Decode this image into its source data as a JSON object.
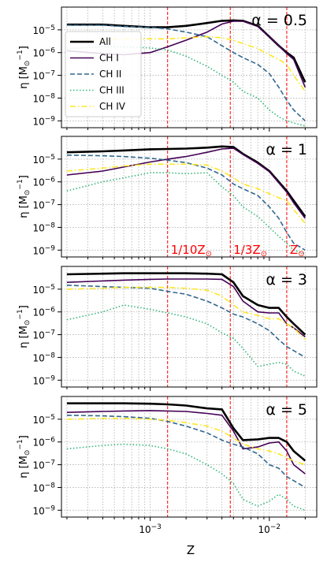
{
  "figure": {
    "xlabel": "Z",
    "ylabel": "η [M",
    "ylabel_sub": "⊙",
    "ylabel_sup": "−1",
    "ylabel_end": "]"
  },
  "chart_data": {
    "type": "line",
    "x_scale": "log",
    "y_scale": "log",
    "xlim": [
      0.00018,
      0.025
    ],
    "ylim": [
      5e-10,
      0.0001
    ],
    "grid": true,
    "legend": {
      "placement": "upper-left of top panel",
      "entries": [
        {
          "label": "All",
          "color": "#000000",
          "style": "solid"
        },
        {
          "label": "CH I",
          "color": "#440154",
          "style": "solid"
        },
        {
          "label": "CH II",
          "color": "#31688e",
          "style": "dashed"
        },
        {
          "label": "CH III",
          "color": "#35b779",
          "style": "dotted"
        },
        {
          "label": "CH IV",
          "color": "#fde725",
          "style": "dashdot"
        }
      ]
    },
    "x_ticks": [
      {
        "value": 0.001,
        "base": "10",
        "exp": "−3"
      },
      {
        "value": 0.01,
        "base": "10",
        "exp": "−2"
      }
    ],
    "y_ticks": [
      {
        "value": 1e-05,
        "base": "10",
        "exp": "−5"
      },
      {
        "value": 1e-06,
        "base": "10",
        "exp": "−6"
      },
      {
        "value": 1e-07,
        "base": "10",
        "exp": "−7"
      },
      {
        "value": 1e-08,
        "base": "10",
        "exp": "−8"
      },
      {
        "value": 1e-09,
        "base": "10",
        "exp": "−9"
      }
    ],
    "vlines": [
      {
        "x": 0.0014,
        "label_main": "1/10Z",
        "label_sub": "⊙"
      },
      {
        "x": 0.0047,
        "label_main": "1/3Z",
        "label_sub": "⊙"
      },
      {
        "x": 0.014,
        "label_main": "Z",
        "label_sub": "⊙"
      }
    ],
    "vline_labels_panel": 1,
    "x": [
      0.0002,
      0.0004,
      0.0006,
      0.001,
      0.0014,
      0.002,
      0.003,
      0.004,
      0.005,
      0.006,
      0.008,
      0.01,
      0.012,
      0.014,
      0.016,
      0.02
    ],
    "panels": [
      {
        "title": "α = 0.5",
        "series": [
          {
            "name": "All",
            "values": [
              1.7e-05,
              1.7e-05,
              1.5e-05,
              1.3e-05,
              1.3e-05,
              1.5e-05,
              2e-05,
              2.5e-05,
              2.6e-05,
              2.5e-05,
              1.5e-05,
              5e-06,
              2e-06,
              1e-06,
              6e-07,
              5e-08
            ]
          },
          {
            "name": "CH I",
            "values": [
              1.2e-06,
              9e-07,
              8e-07,
              1e-06,
              1.8e-06,
              3.5e-06,
              8e-06,
              1.8e-05,
              2.4e-05,
              2.4e-05,
              1.4e-05,
              5e-06,
              2e-06,
              9e-07,
              5e-07,
              3e-08
            ]
          },
          {
            "name": "CH II",
            "values": [
              1.6e-05,
              1.6e-05,
              1.4e-05,
              1.3e-05,
              1.1e-05,
              8e-06,
              5e-06,
              2e-06,
              1e-06,
              6e-07,
              3e-07,
              1.2e-07,
              3e-08,
              8e-09,
              3e-09,
              1e-09
            ]
          },
          {
            "name": "CH III",
            "values": [
              1.5e-06,
              1.8e-06,
              1.8e-06,
              1.6e-06,
              1.3e-06,
              7e-07,
              2.5e-07,
              1e-07,
              5e-08,
              2e-08,
              1e-08,
              3e-09,
              1.5e-09,
              1e-09,
              8e-10,
              6e-10
            ]
          },
          {
            "name": "CH IV",
            "values": [
              3e-06,
              3.5e-06,
              4e-06,
              4e-06,
              4e-06,
              4.5e-06,
              5e-06,
              4.5e-06,
              3.5e-06,
              2.5e-06,
              1.5e-06,
              8e-07,
              5e-07,
              3e-07,
              1e-07,
              2e-08
            ]
          }
        ]
      },
      {
        "title": "α = 1",
        "series": [
          {
            "name": "All",
            "values": [
              2e-05,
              2.2e-05,
              2.4e-05,
              2.7e-05,
              2.8e-05,
              2.9e-05,
              3.2e-05,
              3.6e-05,
              3.4e-05,
              1.7e-05,
              7e-06,
              3e-06,
              1e-06,
              4e-07,
              1.5e-07,
              3e-08
            ]
          },
          {
            "name": "CH I",
            "values": [
              2e-06,
              3e-06,
              4.5e-06,
              7.5e-06,
              1e-05,
              1.3e-05,
              2e-05,
              2.8e-05,
              3e-05,
              1.6e-05,
              6.5e-06,
              2.8e-06,
              9e-07,
              3.5e-07,
              1.2e-07,
              2.5e-08
            ]
          },
          {
            "name": "CH II",
            "values": [
              1.5e-05,
              1.4e-05,
              1.3e-05,
              1.1e-05,
              9e-06,
              7e-06,
              4e-06,
              2e-06,
              8e-07,
              5e-07,
              2.5e-07,
              8e-08,
              2.5e-08,
              6e-09,
              2e-09,
              1e-09
            ]
          },
          {
            "name": "CH III",
            "values": [
              4e-07,
              1e-06,
              1.5e-06,
              2.5e-06,
              2.5e-06,
              2.3e-06,
              2.5e-06,
              6e-07,
              2.5e-07,
              8e-08,
              3e-08,
              1e-08,
              4e-09,
              2e-09,
              1e-09,
              7e-10
            ]
          },
          {
            "name": "CH IV",
            "values": [
              3e-06,
              4e-06,
              5e-06,
              6e-06,
              6e-06,
              6e-06,
              5.5e-06,
              3e-06,
              1.5e-06,
              8e-07,
              5e-07,
              3e-07,
              2e-07,
              1.5e-07,
              6e-08,
              1.5e-08
            ]
          }
        ]
      },
      {
        "title": "α = 3",
        "series": [
          {
            "name": "All",
            "values": [
              4.5e-05,
              4.8e-05,
              5e-05,
              5e-05,
              5e-05,
              5e-05,
              4.8e-05,
              4.5e-05,
              2e-05,
              5e-06,
              2e-06,
              1.5e-06,
              1.5e-06,
              6e-07,
              3e-07,
              1e-07
            ]
          },
          {
            "name": "CH I",
            "values": [
              2e-05,
              2.3e-05,
              2.5e-05,
              2.7e-05,
              2.8e-05,
              2.8e-05,
              2.8e-05,
              2.7e-05,
              1.3e-05,
              3e-06,
              1e-06,
              9e-07,
              9e-07,
              3e-07,
              2e-07,
              8e-08
            ]
          },
          {
            "name": "CH II",
            "values": [
              1.5e-05,
              1.3e-05,
              1.2e-05,
              1.1e-05,
              8e-06,
              6e-06,
              3e-06,
              1.5e-06,
              8e-07,
              6e-07,
              3e-07,
              1.5e-07,
              6e-08,
              3e-08,
              2e-08,
              1e-08
            ]
          },
          {
            "name": "CH III",
            "values": [
              4.5e-07,
              1e-06,
              2e-06,
              1.3e-06,
              9e-07,
              6e-07,
              3e-07,
              1.2e-07,
              7e-08,
              2.5e-08,
              4e-09,
              5e-09,
              6e-09,
              5e-09,
              2.5e-09,
              1.5e-09
            ]
          },
          {
            "name": "CH IV",
            "values": [
              1e-05,
              1.1e-05,
              1.2e-05,
              1.2e-05,
              1.2e-05,
              1.1e-05,
              9e-06,
              5e-06,
              2e-06,
              1e-06,
              7e-07,
              5e-07,
              5e-07,
              3e-07,
              2e-07,
              6e-08
            ]
          }
        ]
      },
      {
        "title": "α = 5",
        "series": [
          {
            "name": "All",
            "values": [
              5e-05,
              5e-05,
              5e-05,
              4.8e-05,
              4.5e-05,
              4e-05,
              3e-05,
              2.7e-05,
              4e-06,
              1.2e-06,
              1.3e-06,
              1.5e-06,
              1.5e-06,
              1e-06,
              4e-07,
              1.5e-07
            ]
          },
          {
            "name": "CH I",
            "values": [
              2e-05,
              2.2e-05,
              2.3e-05,
              2.4e-05,
              2.3e-05,
              2.2e-05,
              1.8e-05,
              1.5e-05,
              3e-06,
              5e-07,
              6e-07,
              9e-07,
              1e-06,
              4e-07,
              1e-07,
              4e-08
            ]
          },
          {
            "name": "CH II",
            "values": [
              1.5e-05,
              1.4e-05,
              1.3e-05,
              1.1e-05,
              8e-06,
              5e-06,
              2.5e-06,
              1.2e-06,
              8e-07,
              6e-07,
              3e-07,
              1e-07,
              7e-08,
              3e-08,
              2e-08,
              1e-08
            ]
          },
          {
            "name": "CH III",
            "values": [
              5e-07,
              7e-07,
              8e-07,
              7e-07,
              5e-07,
              3e-07,
              1e-07,
              4e-08,
              1.5e-08,
              3e-09,
              1.5e-09,
              2.5e-09,
              5e-09,
              3e-09,
              1.5e-09,
              1e-09
            ]
          },
          {
            "name": "CH IV",
            "values": [
              1e-05,
              1.1e-05,
              1.1e-05,
              1e-05,
              9e-06,
              7e-06,
              5e-06,
              3e-06,
              1.5e-06,
              8e-07,
              5e-07,
              4e-07,
              3e-07,
              2e-07,
              1.5e-07,
              1e-07
            ]
          }
        ]
      }
    ]
  }
}
